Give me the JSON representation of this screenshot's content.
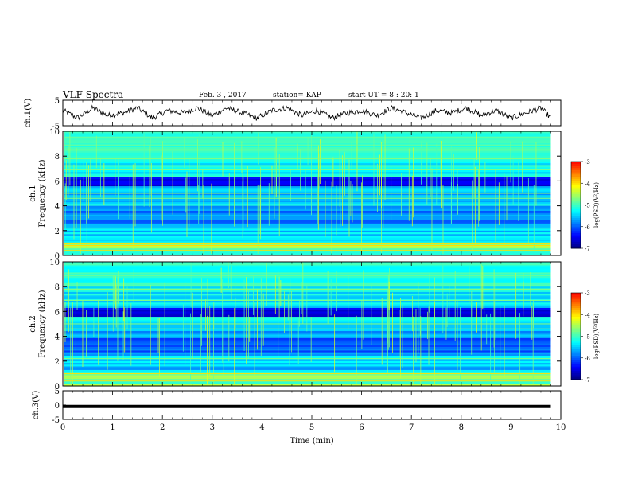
{
  "header": {
    "title": "VLF Spectra",
    "date": "Feb. 3 , 2017",
    "station": "station= KAP",
    "start": "start UT = 8 : 20: 1"
  },
  "chart_data": [
    {
      "type": "line",
      "ylabel": "ch.1(V)",
      "ylim": [
        -5,
        5
      ],
      "yticks": [
        5,
        -5
      ],
      "xlim": [
        0,
        10
      ],
      "series": [
        {
          "x": [
            0,
            0.3,
            0.6,
            0.9,
            1.2,
            1.5,
            1.8,
            2.1,
            2.4,
            2.7,
            3.0,
            3.3,
            3.6,
            3.9,
            4.2,
            4.5,
            4.8,
            5.1,
            5.4,
            5.7,
            6.0,
            6.3,
            6.6,
            6.9,
            7.2,
            7.5,
            7.8,
            8.1,
            8.4,
            8.7,
            9.0,
            9.3,
            9.6,
            9.8
          ],
          "values": [
            1,
            -2,
            2,
            -1,
            0,
            2,
            -2,
            1,
            0,
            2,
            -1,
            2,
            0,
            -2,
            1,
            2,
            -1,
            1,
            -2,
            0,
            1,
            -1,
            2,
            0,
            -2,
            1,
            0,
            2,
            -1,
            1,
            -2,
            0,
            2,
            -2
          ]
        }
      ]
    },
    {
      "type": "heatmap",
      "ylabel": "ch.1\nFrequency (kHz)",
      "yticks": [
        0,
        2,
        4,
        6,
        8,
        10
      ],
      "ylim": [
        0,
        10
      ],
      "xlim": [
        0,
        9.8
      ],
      "colorbar": {
        "label": "log(PSD)(V²/Hz)",
        "ticks": [
          -3,
          -4,
          -5,
          -6,
          -7
        ],
        "range": [
          -7,
          -3
        ]
      }
    },
    {
      "type": "heatmap",
      "ylabel": "ch.2\nFrequency (kHz)",
      "yticks": [
        0,
        2,
        4,
        6,
        8,
        10
      ],
      "ylim": [
        0,
        10
      ],
      "xlim": [
        0,
        9.8
      ],
      "colorbar": {
        "label": "log(PSD)(V²/Hz)",
        "ticks": [
          -3,
          -4,
          -5,
          -6,
          -7
        ],
        "range": [
          -7,
          -3
        ]
      }
    },
    {
      "type": "line",
      "ylabel": "ch.3(V)",
      "ylim": [
        -5,
        5
      ],
      "yticks": [
        5,
        0,
        -5
      ],
      "xlim": [
        0,
        10
      ],
      "series": [
        {
          "x": [
            0,
            9.8
          ],
          "values": [
            -0.5,
            -0.5
          ]
        }
      ]
    }
  ],
  "xaxis": {
    "label": "Time (min)",
    "ticks": [
      0,
      1,
      2,
      3,
      4,
      5,
      6,
      7,
      8,
      9,
      10
    ]
  },
  "colors": {
    "cmap": [
      "#00007f",
      "#0000ff",
      "#0080ff",
      "#00ffff",
      "#80ff80",
      "#ffff00",
      "#ff8000",
      "#ff0000"
    ]
  }
}
